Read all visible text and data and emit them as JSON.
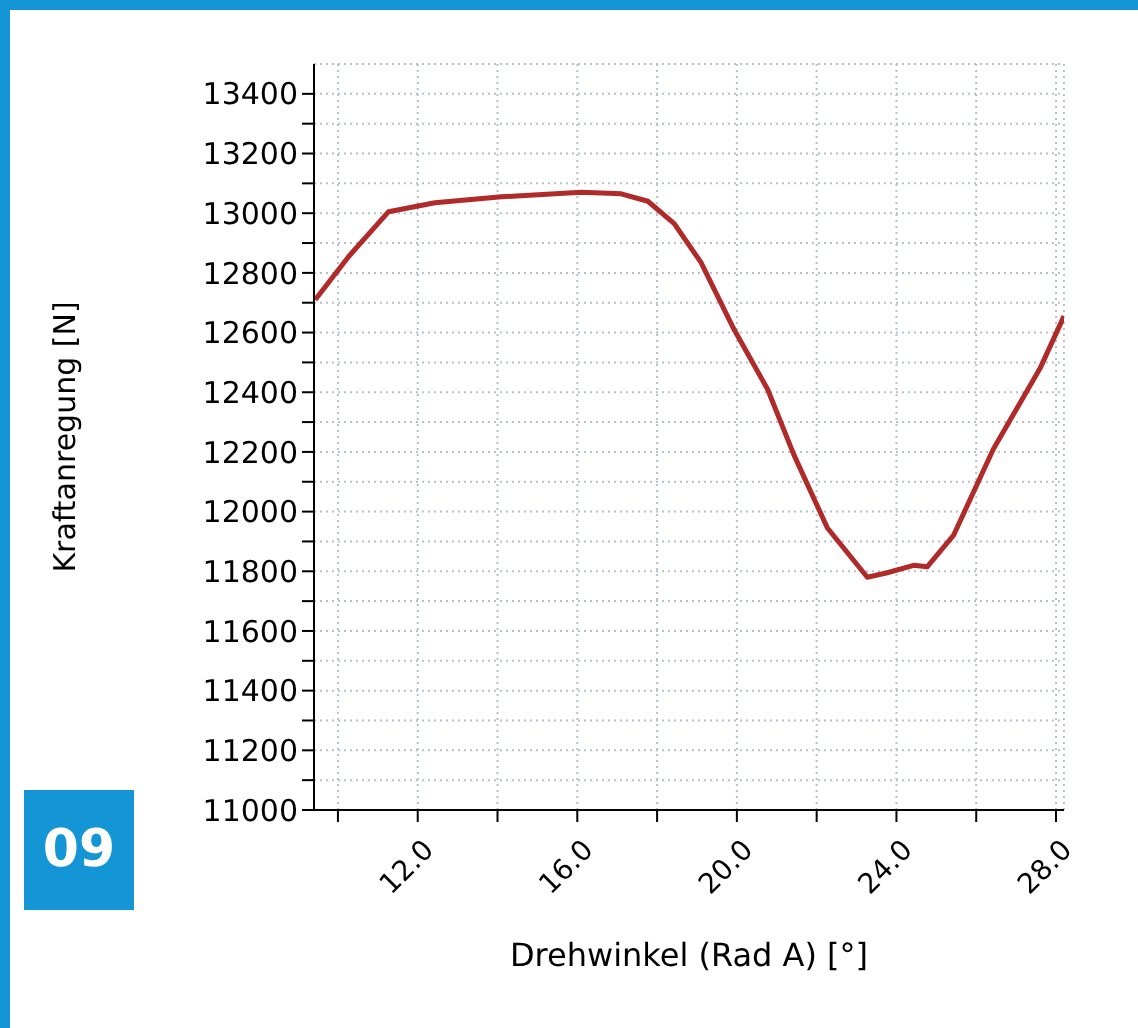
{
  "chart_data": {
    "type": "line",
    "xlabel": "Drehwinkel (Rad A) [°]",
    "ylabel": "Kraftanregung [N]",
    "annotations": [
      "09"
    ],
    "x": [
      9.43,
      10.27,
      11.27,
      12.43,
      14.1,
      16.1,
      17.1,
      17.77,
      18.43,
      19.1,
      19.93,
      20.77,
      21.43,
      22.27,
      23.27,
      23.77,
      24.43,
      24.77,
      25.43,
      26.43,
      27.6,
      28.2
    ],
    "series": [
      {
        "color": "#b02a2a",
        "values": [
          12710,
          12855,
          13005,
          13035,
          13055,
          13070,
          13065,
          13040,
          12965,
          12835,
          12610,
          12410,
          12190,
          11945,
          11780,
          11795,
          11820,
          11815,
          11920,
          12210,
          12480,
          12655
        ]
      }
    ],
    "xlim": [
      9.4,
      28.2
    ],
    "xticks": [
      {
        "value": 10,
        "label": null
      },
      {
        "value": 12,
        "label": "12.0"
      },
      {
        "value": 14,
        "label": null
      },
      {
        "value": 16,
        "label": "16.0"
      },
      {
        "value": 18,
        "label": null
      },
      {
        "value": 20,
        "label": "20.0"
      },
      {
        "value": 22,
        "label": null
      },
      {
        "value": 24,
        "label": "24.0"
      },
      {
        "value": 26,
        "label": null
      },
      {
        "value": 28,
        "label": "28.0"
      }
    ],
    "ylim": [
      11000,
      13500
    ],
    "yticks": [
      11000,
      {
        "value": 11100,
        "label": null
      },
      11200,
      {
        "value": 11300,
        "label": null
      },
      11400,
      {
        "value": 11500,
        "label": null
      },
      11600,
      {
        "value": 11700,
        "label": null
      },
      11800,
      {
        "value": 11900,
        "label": null
      },
      12000,
      {
        "value": 12100,
        "label": null
      },
      12200,
      {
        "value": 12300,
        "label": null
      },
      12400,
      {
        "value": 12500,
        "label": null
      },
      12600,
      {
        "value": 12700,
        "label": null
      },
      12800,
      {
        "value": 12900,
        "label": null
      },
      13000,
      {
        "value": 13100,
        "label": null
      },
      13200,
      {
        "value": 13300,
        "label": null
      },
      13400
    ],
    "grid": true,
    "line_style": "solid",
    "marker": "none"
  }
}
